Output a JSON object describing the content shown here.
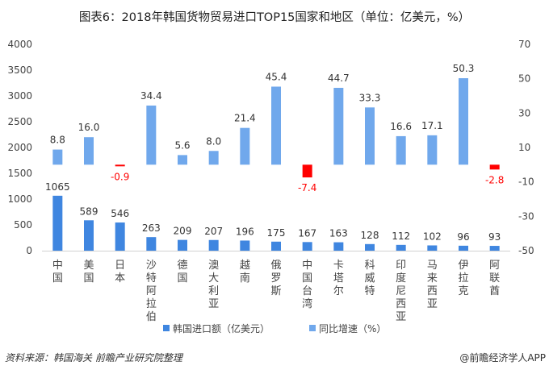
{
  "title": "图表6：2018年韩国货物贸易进口TOP15国家和地区（单位：亿美元，%）",
  "source": "资料来源：韩国海关  前瞻产业研究院整理",
  "credit": "@前瞻经济学人APP",
  "chart_data": {
    "type": "bar",
    "title": "图表6：2018年韩国货物贸易进口TOP15国家和地区（单位：亿美元，%）",
    "categories": [
      "中国",
      "美国",
      "日本",
      "沙特阿拉伯",
      "德国",
      "澳大利亚",
      "越南",
      "俄罗斯",
      "中国台湾",
      "卡塔尔",
      "科威特",
      "印度尼西亚",
      "马来西亚",
      "伊拉克",
      "阿联酋"
    ],
    "series": [
      {
        "name": "韩国进口额（亿美元）",
        "axis": "left",
        "color": "#3f86e0",
        "values": [
          1065,
          589,
          546,
          263,
          209,
          207,
          196,
          175,
          167,
          163,
          128,
          112,
          102,
          96,
          93
        ]
      },
      {
        "name": "同比增速（%）",
        "axis": "right",
        "color": "#70a8ec",
        "negative_color": "#ff0000",
        "values": [
          8.8,
          16.0,
          -0.9,
          34.4,
          5.6,
          8.0,
          21.4,
          45.4,
          -7.4,
          44.7,
          33.3,
          16.6,
          17.1,
          50.3,
          -2.8
        ]
      }
    ],
    "y_left": {
      "range": [
        0,
        4000
      ],
      "ticks": [
        0,
        500,
        1000,
        1500,
        2000,
        2500,
        3000,
        3500,
        4000
      ]
    },
    "y_right": {
      "range": [
        -50,
        70
      ],
      "ticks": [
        -50,
        -30,
        -10,
        10,
        30,
        50,
        70
      ]
    },
    "grid": false,
    "legend": "bottom"
  }
}
